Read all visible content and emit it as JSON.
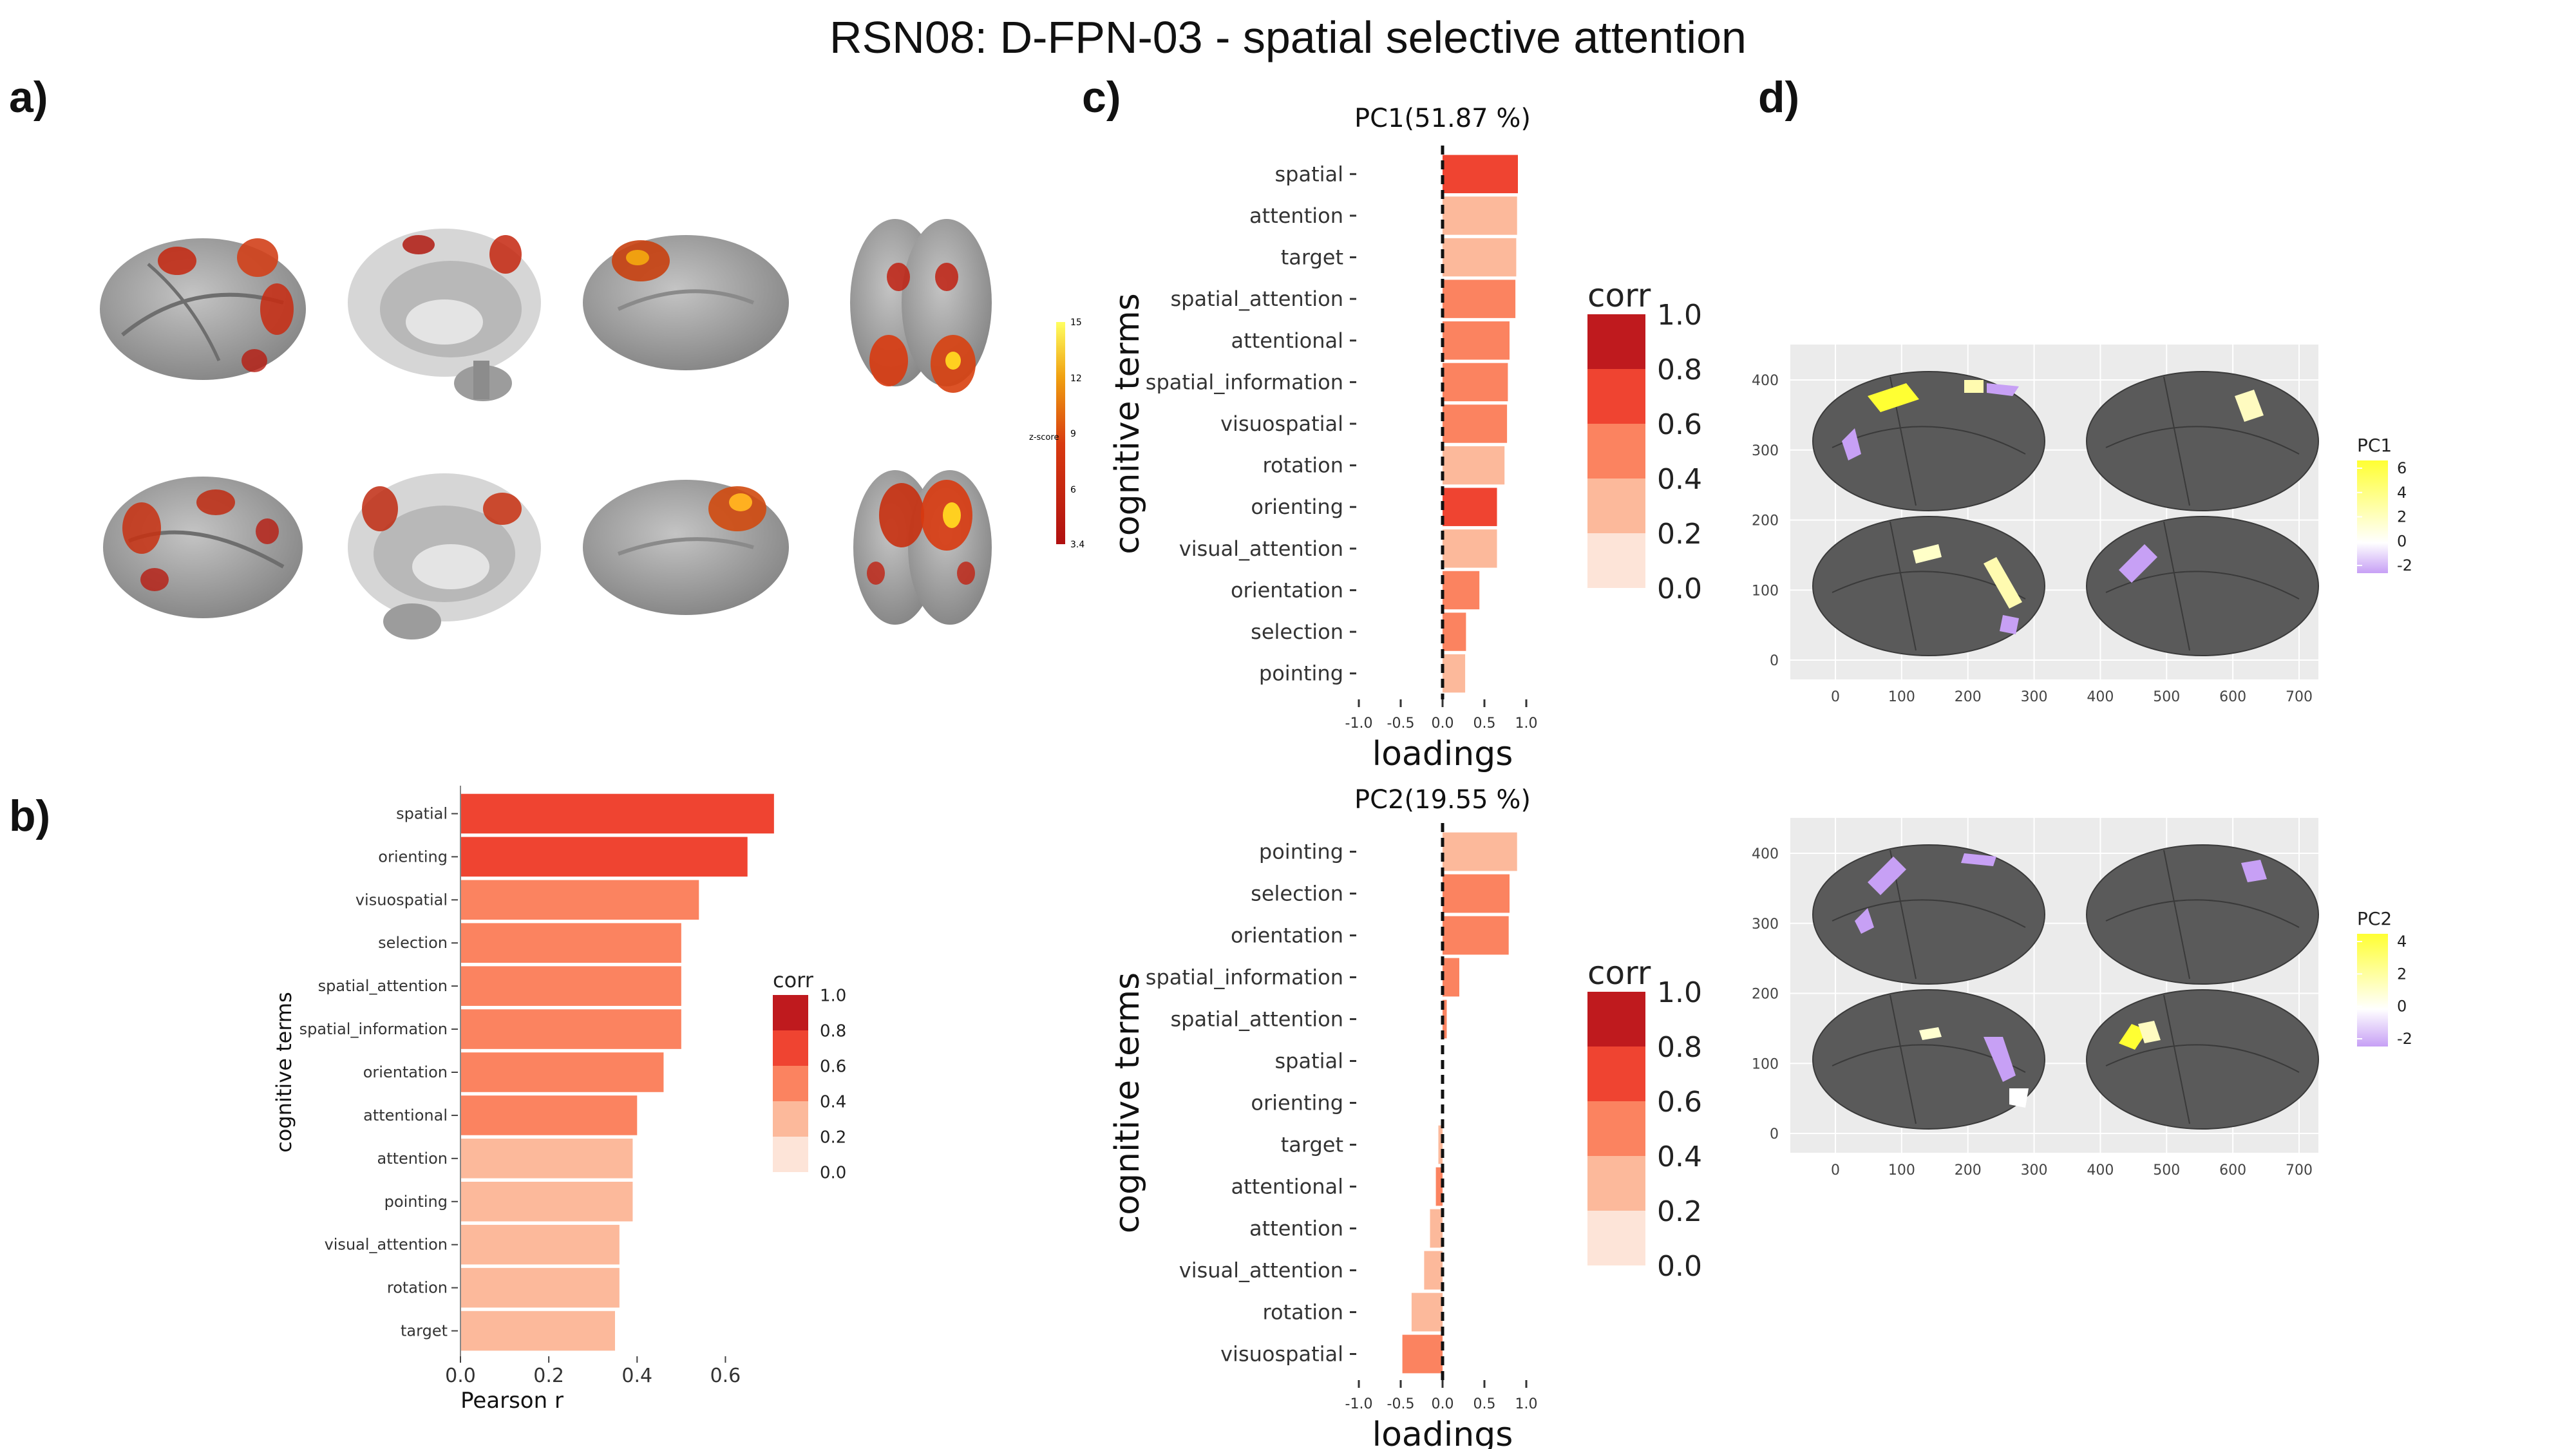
{
  "title": "RSN08: D-FPN-03 - spatial selective attention",
  "panels": {
    "a": "a)",
    "b": "b)",
    "c": "c)",
    "d": "d)"
  },
  "panel_a": {
    "colorbar_label": "z-score",
    "colorbar_ticks": [
      "15",
      "12",
      "9",
      "6",
      "3.4"
    ],
    "colors": {
      "brain_surface": "#9a9a9a",
      "activation_low": "#b01010",
      "activation_high": "#ffe000"
    }
  },
  "colors": {
    "corr_0.0_0.2": "#fde4d8",
    "corr_0.2_0.4": "#fcb99b",
    "corr_0.4_0.6": "#fb8360",
    "corr_0.6_0.8": "#ef4431",
    "corr_0.8_1.0": "#bf1a1e",
    "ggplot_panel": "#ebebeb",
    "brain_parcel": "#5a5a5a",
    "pc_scale_high": "#ffff33",
    "pc_scale_mid": "#ffffff",
    "pc_scale_low": "#c7a0f5"
  },
  "legend_corr": {
    "title": "corr",
    "ticks": [
      "1.0",
      "0.8",
      "0.6",
      "0.4",
      "0.2",
      "0.0"
    ]
  },
  "chart_data": [
    {
      "id": "b",
      "type": "bar",
      "orientation": "horizontal",
      "xlabel": "Pearson r",
      "ylabel": "cognitive terms",
      "xlim": [
        0,
        0.7
      ],
      "xticks": [
        "0.0",
        "0.2",
        "0.4",
        "0.6"
      ],
      "categories": [
        "spatial",
        "orienting",
        "visuospatial",
        "selection",
        "spatial_attention",
        "spatial_information",
        "orientation",
        "attentional",
        "attention",
        "pointing",
        "visual_attention",
        "rotation",
        "target"
      ],
      "values": [
        0.71,
        0.65,
        0.54,
        0.5,
        0.5,
        0.5,
        0.46,
        0.4,
        0.39,
        0.39,
        0.36,
        0.36,
        0.35
      ],
      "legend": {
        "title": "corr",
        "ticks": [
          "1.0",
          "0.8",
          "0.6",
          "0.4",
          "0.2",
          "0.0"
        ],
        "placement": "right"
      }
    },
    {
      "id": "c1",
      "type": "bar",
      "orientation": "horizontal",
      "title": "PC1(51.87 %)",
      "xlabel": "loadings",
      "ylabel": "cognitive terms",
      "xlim": [
        -1.0,
        1.0
      ],
      "xticks": [
        "-1.0",
        "-0.5",
        "0.0",
        "0.5",
        "1.0"
      ],
      "categories": [
        "spatial",
        "attention",
        "target",
        "spatial_attention",
        "attentional",
        "spatial_information",
        "visuospatial",
        "rotation",
        "orienting",
        "visual_attention",
        "orientation",
        "selection",
        "pointing"
      ],
      "values": [
        0.9,
        0.89,
        0.88,
        0.87,
        0.8,
        0.78,
        0.77,
        0.74,
        0.65,
        0.65,
        0.44,
        0.28,
        0.27
      ],
      "corr": [
        0.71,
        0.39,
        0.35,
        0.5,
        0.4,
        0.5,
        0.54,
        0.36,
        0.65,
        0.36,
        0.46,
        0.5,
        0.39
      ],
      "legend": {
        "title": "corr",
        "ticks": [
          "1.0",
          "0.8",
          "0.6",
          "0.4",
          "0.2",
          "0.0"
        ],
        "placement": "right"
      }
    },
    {
      "id": "c2",
      "type": "bar",
      "orientation": "horizontal",
      "title": "PC2(19.55 %)",
      "xlabel": "loadings",
      "ylabel": "cognitive terms",
      "xlim": [
        -1.0,
        1.0
      ],
      "xticks": [
        "-1.0",
        "-0.5",
        "0.0",
        "0.5",
        "1.0"
      ],
      "categories": [
        "pointing",
        "selection",
        "orientation",
        "spatial_information",
        "spatial_attention",
        "spatial",
        "orienting",
        "target",
        "attentional",
        "attention",
        "visual_attention",
        "rotation",
        "visuospatial"
      ],
      "values": [
        0.89,
        0.8,
        0.79,
        0.2,
        0.05,
        0.0,
        0.0,
        -0.05,
        -0.08,
        -0.15,
        -0.22,
        -0.37,
        -0.48
      ],
      "corr": [
        0.39,
        0.5,
        0.46,
        0.5,
        0.5,
        0.71,
        0.65,
        0.35,
        0.4,
        0.39,
        0.36,
        0.36,
        0.54
      ],
      "legend": {
        "title": "corr",
        "ticks": [
          "1.0",
          "0.8",
          "0.6",
          "0.4",
          "0.2",
          "0.0"
        ],
        "placement": "right"
      }
    },
    {
      "id": "d1",
      "type": "heatmap",
      "xticks": [
        "0",
        "100",
        "200",
        "300",
        "400",
        "500",
        "600",
        "700"
      ],
      "yticks": [
        "0",
        "100",
        "200",
        "300",
        "400"
      ],
      "legend": {
        "title": "PC1",
        "ticks": [
          "6",
          "4",
          "2",
          "0",
          "-2"
        ],
        "placement": "right"
      }
    },
    {
      "id": "d2",
      "type": "heatmap",
      "xticks": [
        "0",
        "100",
        "200",
        "300",
        "400",
        "500",
        "600",
        "700"
      ],
      "yticks": [
        "0",
        "100",
        "200",
        "300",
        "400"
      ],
      "legend": {
        "title": "PC2",
        "ticks": [
          "4",
          "2",
          "0",
          "-2"
        ],
        "placement": "right"
      }
    }
  ]
}
